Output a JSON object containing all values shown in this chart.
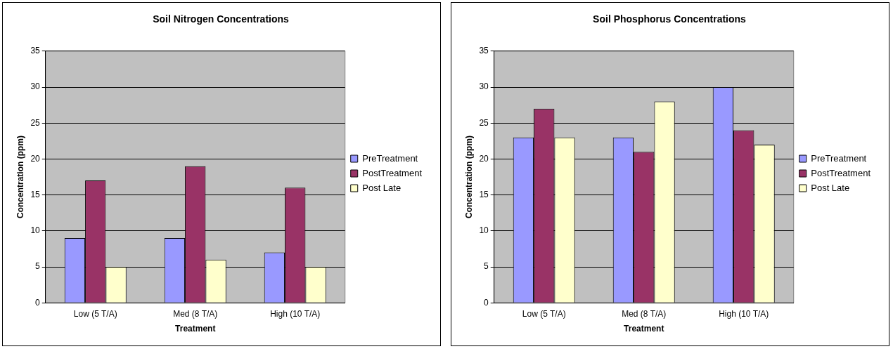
{
  "chart_data": [
    {
      "type": "bar",
      "title": "Soil Nitrogen Concentrations",
      "xlabel": "Treatment",
      "ylabel": "Concentration (ppm)",
      "categories": [
        "Low (5 T/A)",
        "Med (8 T/A)",
        "High (10 T/A)"
      ],
      "series": [
        {
          "name": "PreTreatment",
          "color": "#9999ff",
          "values": [
            9,
            9,
            7
          ]
        },
        {
          "name": "PostTreatment",
          "color": "#993366",
          "values": [
            17,
            19,
            16
          ]
        },
        {
          "name": "Post Late",
          "color": "#ffffcc",
          "values": [
            5,
            6,
            5
          ]
        }
      ],
      "ylim": [
        0,
        35
      ],
      "yticks": [
        0,
        5,
        10,
        15,
        20,
        25,
        30,
        35
      ],
      "grid": "y",
      "legend": "right"
    },
    {
      "type": "bar",
      "title": "Soil Phosphorus Concentrations",
      "xlabel": "Treatment",
      "ylabel": "Concentration (ppm)",
      "categories": [
        "Low (5 T/A)",
        "Med (8 T/A)",
        "High (10 T/A)"
      ],
      "series": [
        {
          "name": "PreTreatment",
          "color": "#9999ff",
          "values": [
            23,
            23,
            30
          ]
        },
        {
          "name": "PostTreatment",
          "color": "#993366",
          "values": [
            27,
            21,
            24
          ]
        },
        {
          "name": "Post Late",
          "color": "#ffffcc",
          "values": [
            23,
            28,
            22
          ]
        }
      ],
      "ylim": [
        0,
        35
      ],
      "yticks": [
        0,
        5,
        10,
        15,
        20,
        25,
        30,
        35
      ],
      "grid": "y",
      "legend": "right"
    }
  ]
}
